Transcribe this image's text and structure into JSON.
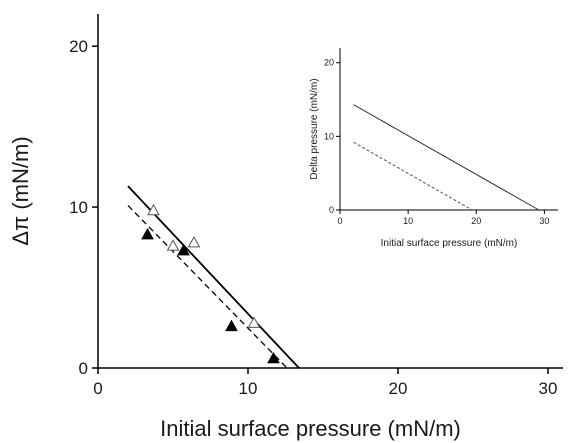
{
  "chart_data": [
    {
      "type": "scatter",
      "xlabel": "Initial surface pressure (mN/m)",
      "ylabel": "Δπ (mN/m)",
      "xlim": [
        0,
        31
      ],
      "ylim": [
        0,
        22
      ],
      "x_ticks": [
        "0",
        "10",
        "20",
        "30"
      ],
      "y_ticks": [
        "0",
        "10",
        "20"
      ],
      "grid": false,
      "series": [
        {
          "marker": "open-triangle",
          "points": [
            [
              3.7,
              9.8
            ],
            [
              5.0,
              7.6
            ],
            [
              6.4,
              7.8
            ],
            [
              10.4,
              2.8
            ]
          ]
        },
        {
          "marker": "filled-triangle",
          "points": [
            [
              3.3,
              8.3
            ],
            [
              5.7,
              7.3
            ],
            [
              8.9,
              2.6
            ],
            [
              11.7,
              0.6
            ]
          ]
        }
      ],
      "fit_lines": [
        {
          "style": "solid",
          "from": [
            2.0,
            11.3
          ],
          "to": [
            13.4,
            0
          ]
        },
        {
          "style": "dashed",
          "from": [
            2.0,
            10.1
          ],
          "to": [
            12.6,
            0
          ]
        }
      ]
    },
    {
      "type": "line",
      "xlabel": "Initial surface pressure (mN/m)",
      "ylabel": "Delta pressure (mN/m)",
      "xlim": [
        0,
        32
      ],
      "ylim": [
        0,
        22
      ],
      "x_ticks": [
        "0",
        "10",
        "20",
        "30"
      ],
      "y_ticks": [
        "0",
        "10",
        "20"
      ],
      "grid": false,
      "series": [
        {
          "style": "solid",
          "from": [
            2.0,
            14.3
          ],
          "to": [
            29.2,
            0
          ]
        },
        {
          "style": "dashed",
          "from": [
            2.0,
            9.2
          ],
          "to": [
            19.4,
            0
          ]
        }
      ]
    }
  ]
}
